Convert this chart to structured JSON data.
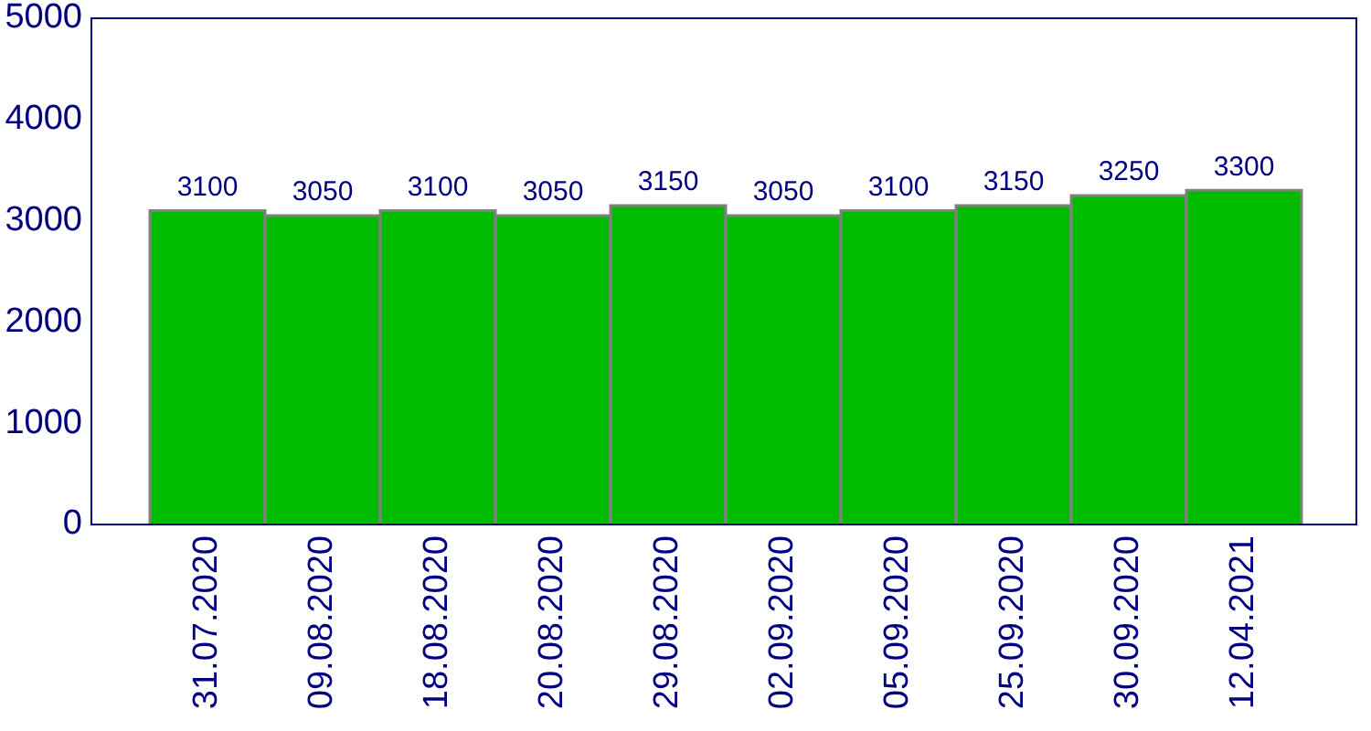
{
  "chart_data": {
    "type": "bar",
    "categories": [
      "31.07.2020",
      "09.08.2020",
      "18.08.2020",
      "20.08.2020",
      "29.08.2020",
      "02.09.2020",
      "05.09.2020",
      "25.09.2020",
      "30.09.2020",
      "12.04.2021"
    ],
    "values": [
      3100,
      3050,
      3100,
      3050,
      3150,
      3050,
      3100,
      3150,
      3250,
      3300
    ],
    "color": "#00bb00",
    "ylim": [
      0,
      5000
    ],
    "yticks": [
      0,
      1000,
      2000,
      3000,
      4000,
      5000
    ],
    "data_labels": true
  }
}
